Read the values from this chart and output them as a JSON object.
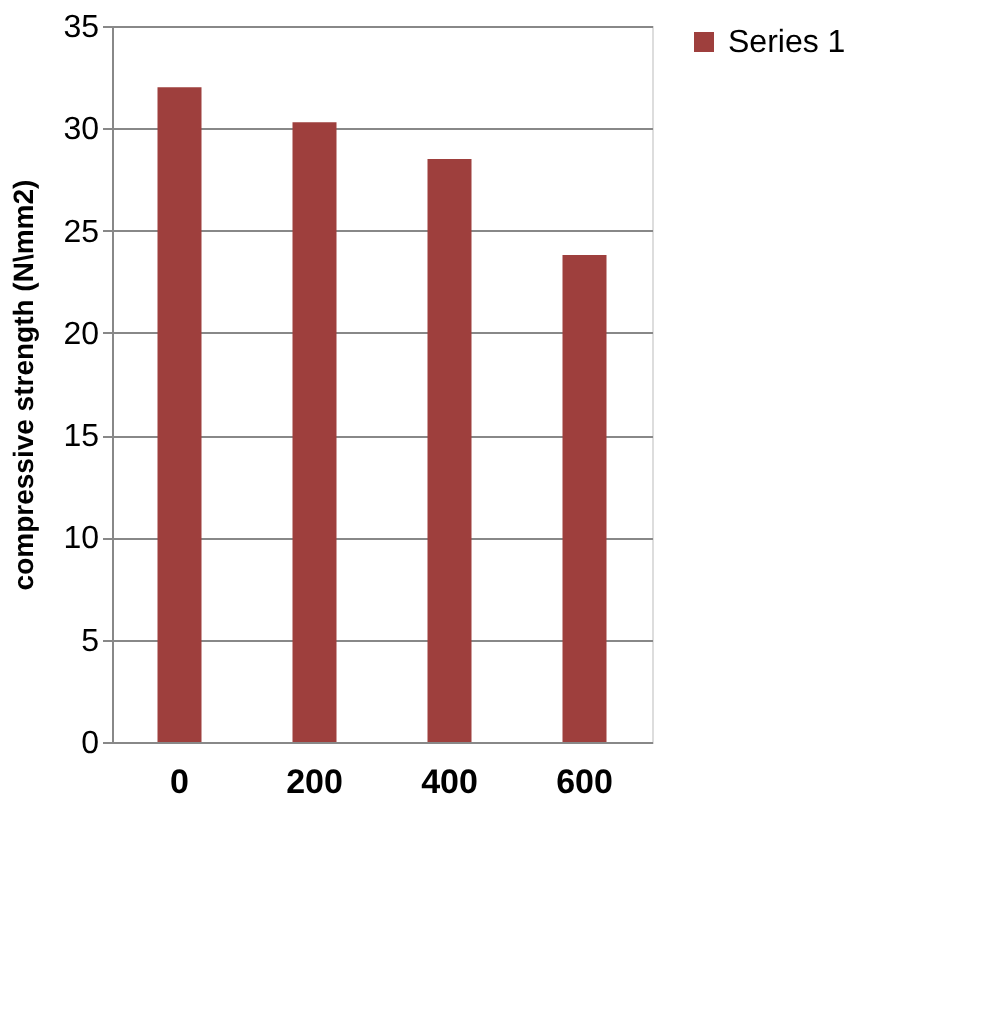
{
  "chart_data": {
    "type": "bar",
    "ylabel": "compressive strength (N\\mm2)",
    "categories": [
      "0",
      "200",
      "400",
      "600"
    ],
    "series": [
      {
        "name": "Series 1",
        "color": "#9e3f3d",
        "values": [
          32.0,
          30.3,
          28.5,
          23.8
        ]
      }
    ],
    "ylim": [
      0,
      35
    ],
    "yticks": [
      0,
      5,
      10,
      15,
      20,
      25,
      30,
      35
    ],
    "grid": "y",
    "legend": "right"
  }
}
